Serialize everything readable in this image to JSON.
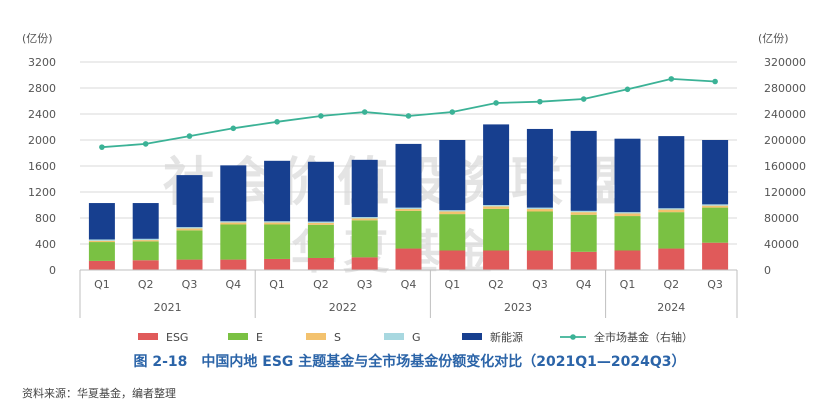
{
  "caption": "图 2-18　中国内地 ESG 主题基金与全市场基金份额变化对比（2021Q1—2024Q3）",
  "source": "资料来源：华夏基金，编者整理",
  "watermark": {
    "line1": "社会价值投资联盟",
    "line2": "华夏基金"
  },
  "chart_data": {
    "type": "bar",
    "stacked": true,
    "left_axis": {
      "unit": "(亿份)",
      "min": 0,
      "max": 3200,
      "ticks": [
        "0",
        "400",
        "800",
        "1200",
        "1600",
        "2000",
        "2400",
        "2800",
        "3200"
      ]
    },
    "right_axis": {
      "unit": "(亿份)",
      "min": 0,
      "max": 320000,
      "ticks": [
        "0",
        "40000",
        "80000",
        "120000",
        "160000",
        "200000",
        "240000",
        "280000",
        "320000"
      ]
    },
    "quarters": [
      "Q1",
      "Q2",
      "Q3",
      "Q4",
      "Q1",
      "Q2",
      "Q3",
      "Q4",
      "Q1",
      "Q2",
      "Q3",
      "Q4",
      "Q1",
      "Q2",
      "Q3"
    ],
    "years": [
      {
        "label": "2021",
        "count": 4
      },
      {
        "label": "2022",
        "count": 4
      },
      {
        "label": "2023",
        "count": 4
      },
      {
        "label": "2024",
        "count": 3
      }
    ],
    "series": [
      {
        "name": "ESG",
        "color": "#e05a5a",
        "values": [
          140,
          150,
          160,
          160,
          170,
          185,
          195,
          330,
          300,
          300,
          300,
          280,
          300,
          330,
          420
        ]
      },
      {
        "name": "E",
        "color": "#7ac143",
        "values": [
          290,
          290,
          450,
          540,
          530,
          510,
          570,
          580,
          560,
          640,
          600,
          570,
          530,
          560,
          540
        ]
      },
      {
        "name": "S",
        "color": "#f3c26e",
        "values": [
          20,
          20,
          30,
          30,
          30,
          30,
          30,
          30,
          40,
          40,
          40,
          40,
          40,
          40,
          30
        ]
      },
      {
        "name": "G",
        "color": "#a8d8e0",
        "values": [
          20,
          20,
          20,
          20,
          20,
          20,
          20,
          20,
          20,
          20,
          20,
          20,
          20,
          20,
          20
        ]
      },
      {
        "name": "新能源",
        "color": "#173f8f",
        "values": [
          560,
          550,
          800,
          860,
          930,
          920,
          880,
          980,
          1080,
          1240,
          1210,
          1230,
          1130,
          1110,
          990
        ]
      }
    ],
    "line_series": {
      "name": "全市场基金（右轴）",
      "color": "#3bb296",
      "axis": "right",
      "values": [
        189000,
        194000,
        206000,
        218000,
        228000,
        237000,
        243000,
        237000,
        243000,
        257000,
        259000,
        263000,
        278000,
        294000,
        290000
      ]
    },
    "legend": {
      "position": "bottom"
    }
  }
}
